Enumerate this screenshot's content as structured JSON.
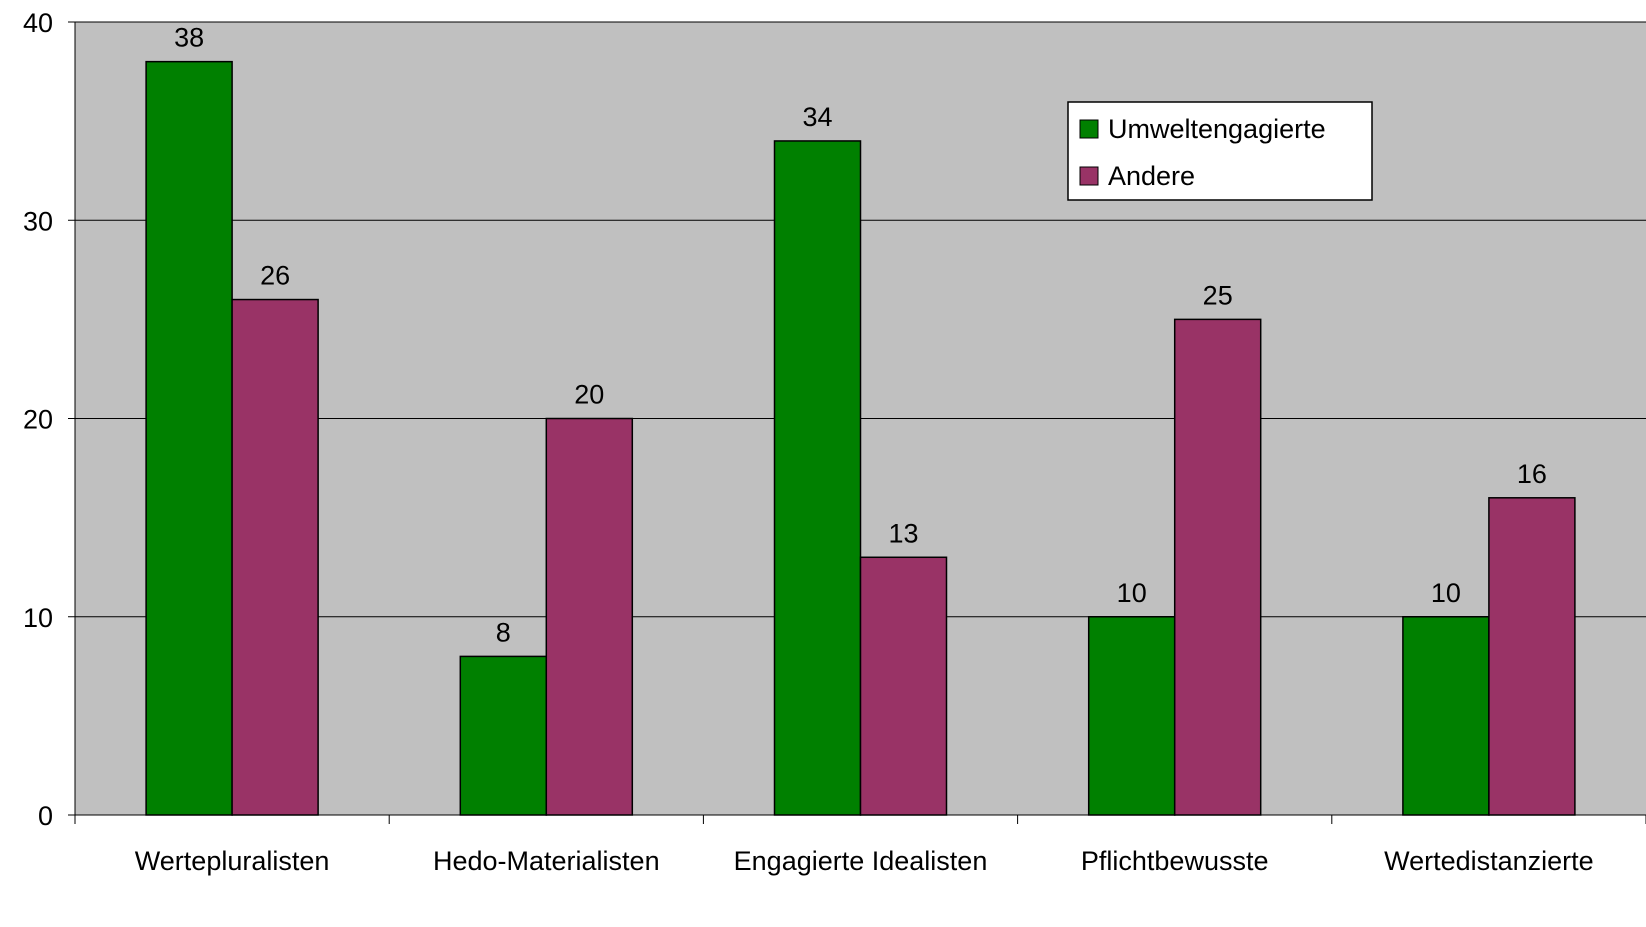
{
  "chart_data": {
    "type": "bar",
    "title": "",
    "xlabel": "",
    "ylabel": "",
    "categories": [
      "Wertepluralisten",
      "Hedo-Materialisten",
      "Engagierte Idealisten",
      "Pflichtbewusste",
      "Wertedistanzierte"
    ],
    "series": [
      {
        "name": "Umweltengagierte",
        "color": "#008000",
        "values": [
          38,
          8,
          34,
          10,
          10
        ]
      },
      {
        "name": "Andere",
        "color": "#993366",
        "values": [
          26,
          20,
          13,
          25,
          16
        ]
      }
    ],
    "ylim": [
      0,
      40
    ],
    "yticks": [
      0,
      10,
      20,
      30,
      40
    ],
    "grid": true,
    "plot_background": "#c0c0c0",
    "legend_position": "top-right",
    "data_labels": true
  }
}
